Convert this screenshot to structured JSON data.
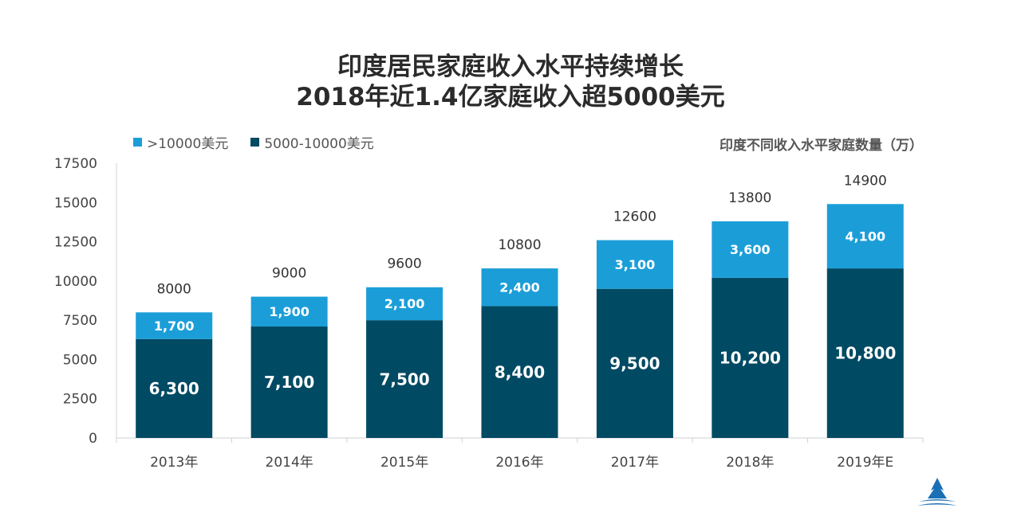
{
  "titles": {
    "line1": "印度居民家庭收入水平持续增长",
    "line2": "2018年近1.4亿家庭收入超5000美元"
  },
  "subtitle": "印度不同收入水平家庭数量（万）",
  "legend": [
    {
      "label": ">10000美元",
      "color": "#1B9ED8"
    },
    {
      "label": "5000-10000美元",
      "color": "#004A63"
    }
  ],
  "chart_data": {
    "type": "bar",
    "stacked": true,
    "categories": [
      "2013年",
      "2014年",
      "2015年",
      "2016年",
      "2017年",
      "2018年",
      "2019年E"
    ],
    "series": [
      {
        "name": "5000-10000美元",
        "color": "#004A63",
        "values": [
          6300,
          7100,
          7500,
          8400,
          9500,
          10200,
          10800
        ],
        "labels": [
          "6,300",
          "7,100",
          "7,500",
          "8,400",
          "9,500",
          "10,200",
          "10,800"
        ]
      },
      {
        "name": ">10000美元",
        "color": "#1B9ED8",
        "values": [
          1700,
          1900,
          2100,
          2400,
          3100,
          3600,
          4100
        ],
        "labels": [
          "1,700",
          "1,900",
          "2,100",
          "2,400",
          "3,100",
          "3,600",
          "4,100"
        ]
      }
    ],
    "totals": [
      8000,
      9000,
      9600,
      10800,
      12600,
      13800,
      14900
    ],
    "ylim": [
      0,
      17500
    ],
    "yticks": [
      0,
      2500,
      5000,
      7500,
      10000,
      12500,
      15000,
      17500
    ],
    "grid": false,
    "legend_position": "top-left"
  }
}
